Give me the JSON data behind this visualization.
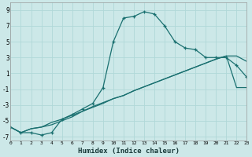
{
  "xlabel": "Humidex (Indice chaleur)",
  "bg_color": "#cce8e8",
  "grid_color": "#b0d8d8",
  "line_color": "#1a7070",
  "xlim": [
    0,
    23
  ],
  "ylim": [
    -7.5,
    10
  ],
  "xticks": [
    0,
    1,
    2,
    3,
    4,
    5,
    6,
    7,
    8,
    9,
    10,
    11,
    12,
    13,
    14,
    15,
    16,
    17,
    18,
    19,
    20,
    21,
    22,
    23
  ],
  "yticks": [
    -7,
    -5,
    -3,
    -1,
    1,
    3,
    5,
    7,
    9
  ],
  "line1_x": [
    0,
    1,
    2,
    3,
    4,
    5,
    6,
    7,
    8,
    9,
    10,
    11,
    12,
    13,
    14,
    15,
    16,
    17,
    18,
    19,
    20,
    21,
    22,
    23
  ],
  "line1_y": [
    -5.8,
    -6.5,
    -6.5,
    -6.8,
    -6.5,
    -4.8,
    -4.2,
    -3.5,
    -2.8,
    -0.8,
    5.0,
    8.0,
    8.2,
    8.8,
    8.5,
    7.0,
    5.0,
    4.2,
    4.0,
    3.0,
    3.0,
    3.0,
    2.0,
    0.5
  ],
  "line2_x": [
    0,
    1,
    2,
    3,
    4,
    5,
    6,
    7,
    8,
    9,
    10,
    11,
    12,
    13,
    14,
    15,
    16,
    17,
    18,
    19,
    20,
    21,
    22,
    23
  ],
  "line2_y": [
    -5.8,
    -6.5,
    -6.0,
    -5.8,
    -5.5,
    -5.0,
    -4.5,
    -3.8,
    -3.2,
    -2.7,
    -2.2,
    -1.8,
    -1.2,
    -0.7,
    -0.2,
    0.3,
    0.8,
    1.3,
    1.8,
    2.3,
    2.8,
    3.2,
    3.2,
    2.5
  ],
  "line3_x": [
    0,
    1,
    2,
    3,
    4,
    5,
    6,
    7,
    8,
    9,
    10,
    11,
    12,
    13,
    14,
    15,
    16,
    17,
    18,
    19,
    20,
    21,
    22,
    23
  ],
  "line3_y": [
    -5.8,
    -6.5,
    -6.0,
    -5.8,
    -5.2,
    -4.8,
    -4.3,
    -3.8,
    -3.3,
    -2.8,
    -2.2,
    -1.8,
    -1.2,
    -0.7,
    -0.2,
    0.3,
    0.8,
    1.3,
    1.8,
    2.3,
    2.8,
    3.2,
    -0.8,
    -0.8
  ]
}
